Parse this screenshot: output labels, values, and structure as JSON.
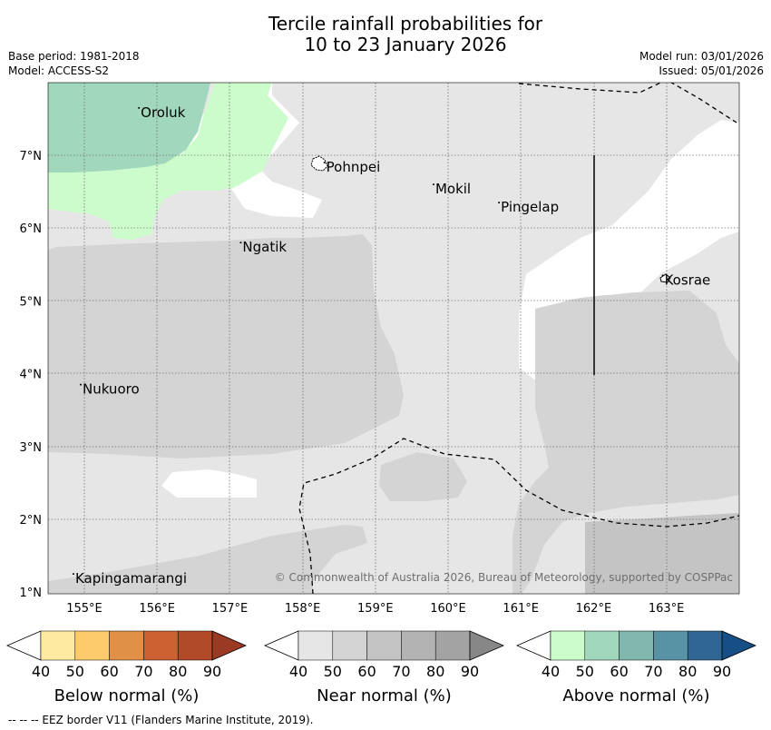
{
  "title": {
    "line1": "Tercile rainfall probabilities for",
    "line2": "10 to 23 January 2026"
  },
  "meta": {
    "base_period": "Base period: 1981-2018",
    "model": "Model: ACCESS-S2",
    "model_run": "Model run: 03/01/2026",
    "issued": "Issued: 05/01/2026"
  },
  "map": {
    "lon_ticks": [
      "155°E",
      "156°E",
      "157°E",
      "158°E",
      "159°E",
      "160°E",
      "161°E",
      "162°E",
      "163°E"
    ],
    "lat_ticks": [
      "7°N",
      "6°N",
      "5°N",
      "4°N",
      "3°N",
      "2°N",
      "1°N"
    ],
    "places": [
      {
        "name": "Oroluk",
        "lon": 155.75,
        "lat": 7.65
      },
      {
        "name": "Pohnpei",
        "lon": 158.3,
        "lat": 6.9
      },
      {
        "name": "Mokil",
        "lon": 159.8,
        "lat": 6.6
      },
      {
        "name": "Pingelap",
        "lon": 160.7,
        "lat": 6.35
      },
      {
        "name": "Ngatik",
        "lon": 157.15,
        "lat": 5.8
      },
      {
        "name": "Kosrae",
        "lon": 162.95,
        "lat": 5.35
      },
      {
        "name": "Nukuoro",
        "lon": 154.95,
        "lat": 3.85
      },
      {
        "name": "Kapingamarangi",
        "lon": 154.85,
        "lat": 1.25
      }
    ],
    "copyright": "© Commonwealth of Australia 2026, Bureau of Meteorology, supported by COSPPac",
    "colors": {
      "near40": "#e6e6e6",
      "near50": "#d4d4d4",
      "near60": "#c4c4c4",
      "above40": "#ccfccc",
      "above50": "#a1d8bd"
    }
  },
  "colorbars": [
    {
      "name": "below",
      "title": "Below normal (%)",
      "ticks": [
        "40",
        "50",
        "60",
        "70",
        "80",
        "90"
      ],
      "colors": [
        "#ffffff",
        "#feeaa0",
        "#fdcb6b",
        "#e19147",
        "#cc6030",
        "#b14a28",
        "#9b3a22"
      ]
    },
    {
      "name": "near",
      "title": "Near normal (%)",
      "ticks": [
        "40",
        "50",
        "60",
        "70",
        "80",
        "90"
      ],
      "colors": [
        "#ffffff",
        "#e6e6e6",
        "#d4d4d4",
        "#c4c4c4",
        "#b3b3b3",
        "#a3a3a3",
        "#878787"
      ]
    },
    {
      "name": "above",
      "title": "Above normal (%)",
      "ticks": [
        "40",
        "50",
        "60",
        "70",
        "80",
        "90"
      ],
      "colors": [
        "#ffffff",
        "#ccfccc",
        "#a1d8bd",
        "#82b7af",
        "#5793a4",
        "#2f6694",
        "#164e86"
      ]
    }
  ],
  "footer": "--  --  -- EEZ border V11 (Flanders Marine Institute, 2019)."
}
